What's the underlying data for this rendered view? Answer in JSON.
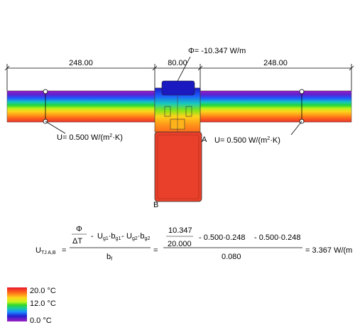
{
  "heat_flow": {
    "phi_symbol": "Φ",
    "label": "= -10.347 W/m"
  },
  "dimensions": {
    "left": "248.00",
    "middle": "80.00",
    "right": "248.00"
  },
  "u_values": {
    "left": {
      "prefix": "U",
      "text": "= 0.500 W/(m",
      "exp": "2",
      "suffix": "·K)"
    },
    "right": {
      "prefix": "U",
      "text": "= 0.500 W/(m",
      "exp": "2",
      "suffix": "·K)"
    }
  },
  "points": {
    "a": "A",
    "b": "B"
  },
  "formula": {
    "lhs_symbol": "U",
    "lhs_sub": "TJ A,B",
    "eq": "=",
    "frac1_num": "Φ",
    "frac1_den": "ΔT",
    "minus": "-",
    "ug1": "U",
    "ug1_sub": "g1",
    "dot": "·",
    "bg1": "b",
    "bg1_sub": "g1",
    "ug2": "U",
    "ug2_sub": "g2",
    "bg2": "b",
    "bg2_sub": "g2",
    "bf": "b",
    "bf_sub": "f",
    "num_value": "10.347",
    "den_value": "20.000",
    "term1": "- 0.500·0.248",
    "term2": "- 0.500·0.248",
    "denominator": "0.080",
    "result": "= 3.367 W/(m"
  },
  "legend": {
    "max": "20.0 °C",
    "mid": "12.0 °C",
    "min": "0.0 °C",
    "colors": [
      "#e8192c",
      "#ff6a1a",
      "#ffd21a",
      "#c8f51a",
      "#2fd62f",
      "#17c9a6",
      "#1a8cff",
      "#2020d0",
      "#6a20c8",
      "#9b1fc4"
    ]
  }
}
